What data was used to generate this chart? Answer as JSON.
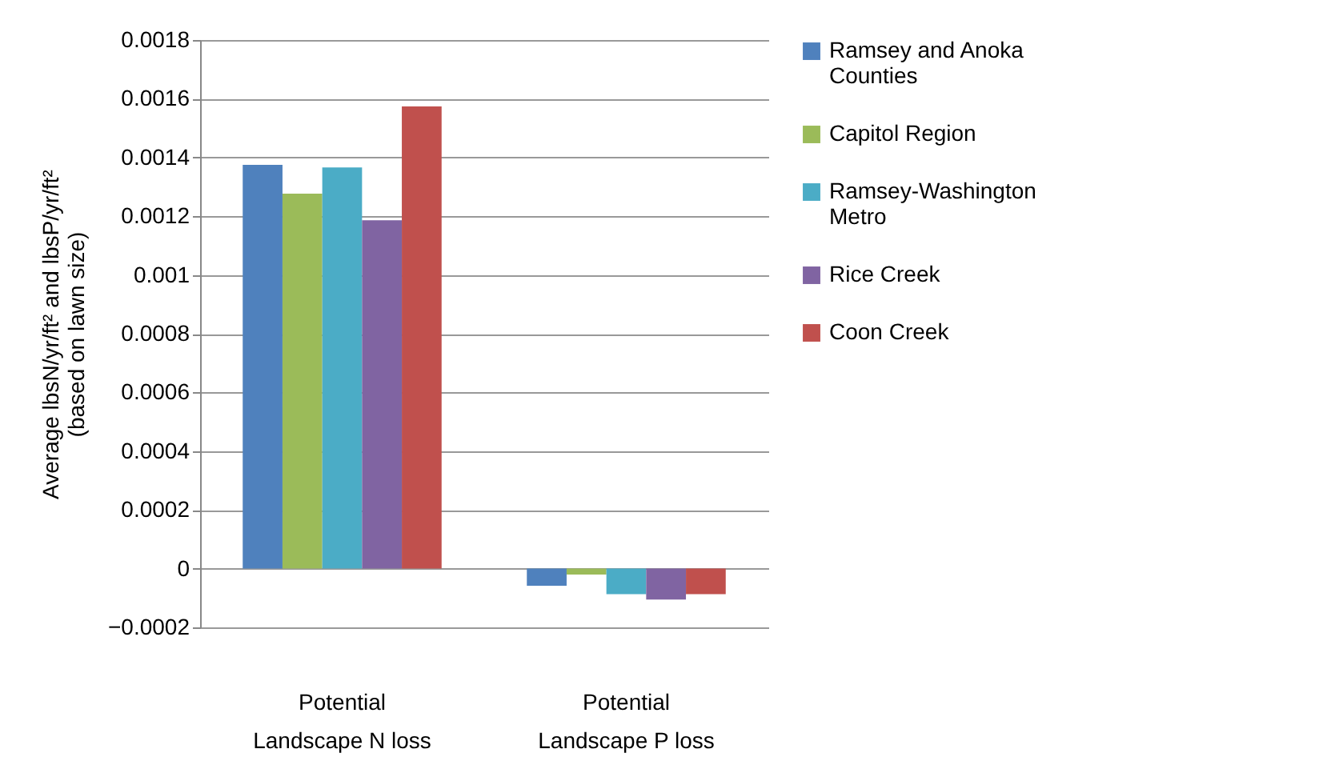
{
  "chart_data": {
    "type": "bar",
    "ylabel": "Average lbsN/yr/ft² and lbsP/yr/ft²\n(based on lawn size)",
    "categories": [
      "Potential Landscape N loss",
      "Potential Landscape P loss"
    ],
    "series": [
      {
        "name": "Ramsey and Anoka Counties",
        "color": "#4f81bd",
        "values": [
          0.001375,
          -5.8e-05
        ]
      },
      {
        "name": "Capitol Region",
        "color": "#9bbb59",
        "values": [
          0.001277,
          -2e-05
        ]
      },
      {
        "name": "Ramsey-Washington Metro",
        "color": "#4bacc6",
        "values": [
          0.001366,
          -8.7e-05
        ]
      },
      {
        "name": "Rice Creek",
        "color": "#8064a2",
        "values": [
          0.001186,
          -0.000105
        ]
      },
      {
        "name": "Coon Creek",
        "color": "#c0504d",
        "values": [
          0.001574,
          -8.7e-05
        ]
      }
    ],
    "ylim": [
      -0.0002,
      0.0018
    ],
    "yticks": [
      -0.0002,
      0,
      0.0002,
      0.0004,
      0.0006,
      0.0008,
      0.001,
      0.0012,
      0.0014,
      0.0016,
      0.0018
    ],
    "grid": "y",
    "legend": "right"
  }
}
